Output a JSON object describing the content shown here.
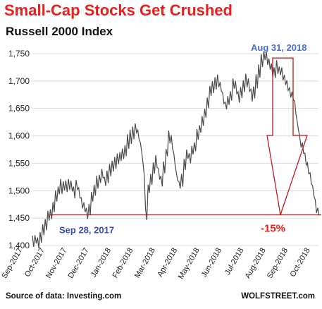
{
  "title": "Small-Cap Stocks Get Crushed",
  "subtitle": "Russell  2000 Index",
  "source": "Source of data: Investing.com",
  "brand": "WOLFSTREET.com",
  "colors": {
    "title": "#e8201c",
    "series": "#4a4a4a",
    "annotation_line": "#c0191e",
    "start_label": "#3a4fb8",
    "peak_label": "#4a6fd4",
    "pct_label": "#e8201c"
  },
  "chart_data": {
    "type": "line",
    "title": "Russell  2000 Index",
    "xlabel": "",
    "ylabel": "",
    "ylim": [
      1400,
      1750
    ],
    "yticks": [
      1400,
      1450,
      1500,
      1550,
      1600,
      1650,
      1700,
      1750
    ],
    "ytick_labels": [
      "1,400",
      "1,450",
      "1,500",
      "1,550",
      "1,600",
      "1,650",
      "1,700",
      "1,750"
    ],
    "xticks": [
      "Sep-2017",
      "Oct-2017",
      "Nov-2017",
      "Dec-2017",
      "Jan-2018",
      "Feb-2018",
      "Mar-2018",
      "Apr-2018",
      "May-2018",
      "Jun-2018",
      "Jul-2018",
      "Aug-2018",
      "Sep-2018",
      "Oct-2018"
    ],
    "grid": "horizontal",
    "series": [
      {
        "values": [
          1408,
          1412,
          1405,
          1418,
          1428,
          1440,
          1452,
          1456,
          1468,
          1490,
          1500,
          1508,
          1510,
          1505,
          1512,
          1507,
          1500,
          1510,
          1495,
          1480,
          1470,
          1462,
          1468,
          1488,
          1500,
          1515,
          1522,
          1530,
          1518,
          1525,
          1535,
          1545,
          1552,
          1558,
          1562,
          1565,
          1575,
          1590,
          1598,
          1605,
          1612,
          1602,
          1580,
          1540,
          1460,
          1505,
          1520,
          1545,
          1555,
          1530,
          1520,
          1540,
          1570,
          1598,
          1590,
          1560,
          1525,
          1510,
          1520,
          1545,
          1565,
          1560,
          1575,
          1580,
          1600,
          1612,
          1625,
          1640,
          1660,
          1685,
          1690,
          1698,
          1700,
          1690,
          1672,
          1655,
          1665,
          1675,
          1695,
          1690,
          1670,
          1682,
          1690,
          1700,
          1695,
          1672,
          1680,
          1700,
          1720,
          1738,
          1745,
          1740,
          1730,
          1720,
          1715,
          1725,
          1720,
          1715,
          1700,
          1690,
          1680,
          1672,
          1650,
          1620,
          1590,
          1580,
          1560,
          1540,
          1520,
          1500,
          1470,
          1462
        ]
      }
    ],
    "annotations": [
      {
        "text": "Sep 28, 2017",
        "value": 1456
      },
      {
        "text": "Aug 31, 2018",
        "value": 1742
      },
      {
        "text": "-15%"
      }
    ]
  }
}
